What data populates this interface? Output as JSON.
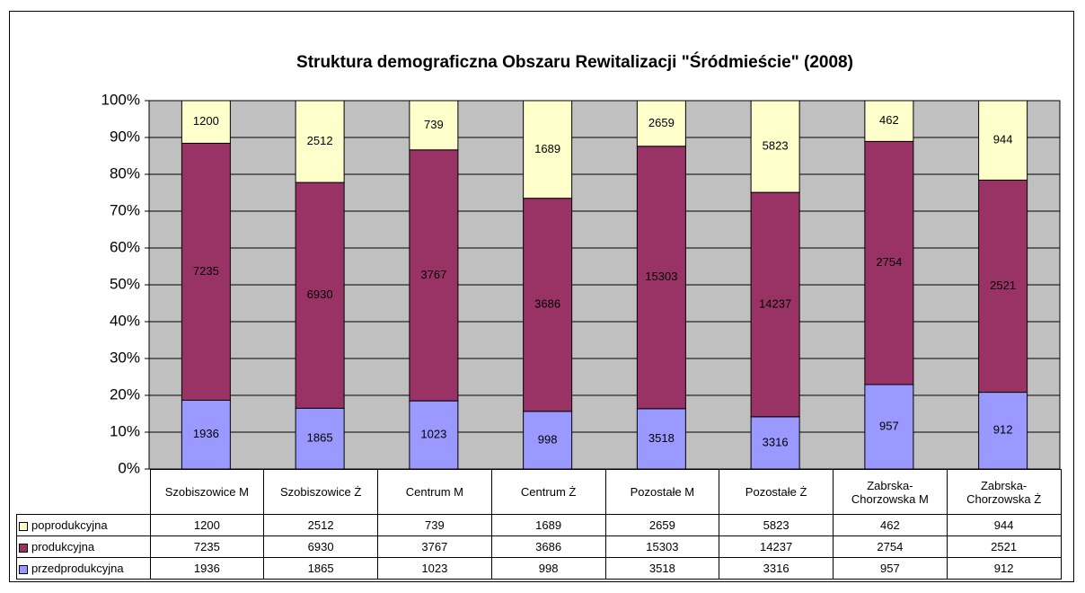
{
  "chart_data": {
    "type": "bar",
    "stacked": "percent",
    "title": "Struktura demograficzna Obszaru Rewitalizacji \"Śródmieście\" (2008)",
    "categories": [
      "Szobiszowice M",
      "Szobiszowice Ż",
      "Centrum M",
      "Centrum Ż",
      "Pozostałe M",
      "Pozostałe Ż",
      "Zabrska-Chorzowska M",
      "Zabrska-Chorzowska Ż"
    ],
    "series": [
      {
        "name": "poprodukcyjna",
        "color": "#ffffcc",
        "values": [
          1200,
          2512,
          739,
          1689,
          2659,
          5823,
          462,
          944
        ]
      },
      {
        "name": "produkcyjna",
        "color": "#993366",
        "values": [
          7235,
          6930,
          3767,
          3686,
          15303,
          14237,
          2754,
          2521
        ]
      },
      {
        "name": "przedprodukcyjna",
        "color": "#9999ff",
        "values": [
          1936,
          1865,
          1023,
          998,
          3518,
          3316,
          957,
          912
        ]
      }
    ],
    "ylim": [
      0,
      100
    ],
    "yticks": [
      {
        "value": 0,
        "label": "0%"
      },
      {
        "value": 10,
        "label": "10%"
      },
      {
        "value": 20,
        "label": "20%"
      },
      {
        "value": 30,
        "label": "30%"
      },
      {
        "value": 40,
        "label": "40%"
      },
      {
        "value": 50,
        "label": "50%"
      },
      {
        "value": 60,
        "label": "60%"
      },
      {
        "value": 70,
        "label": "70%"
      },
      {
        "value": 80,
        "label": "80%"
      },
      {
        "value": 90,
        "label": "90%"
      },
      {
        "value": 100,
        "label": "100%"
      }
    ],
    "grid": true,
    "background": "#c0c0c0",
    "legend": "table"
  }
}
